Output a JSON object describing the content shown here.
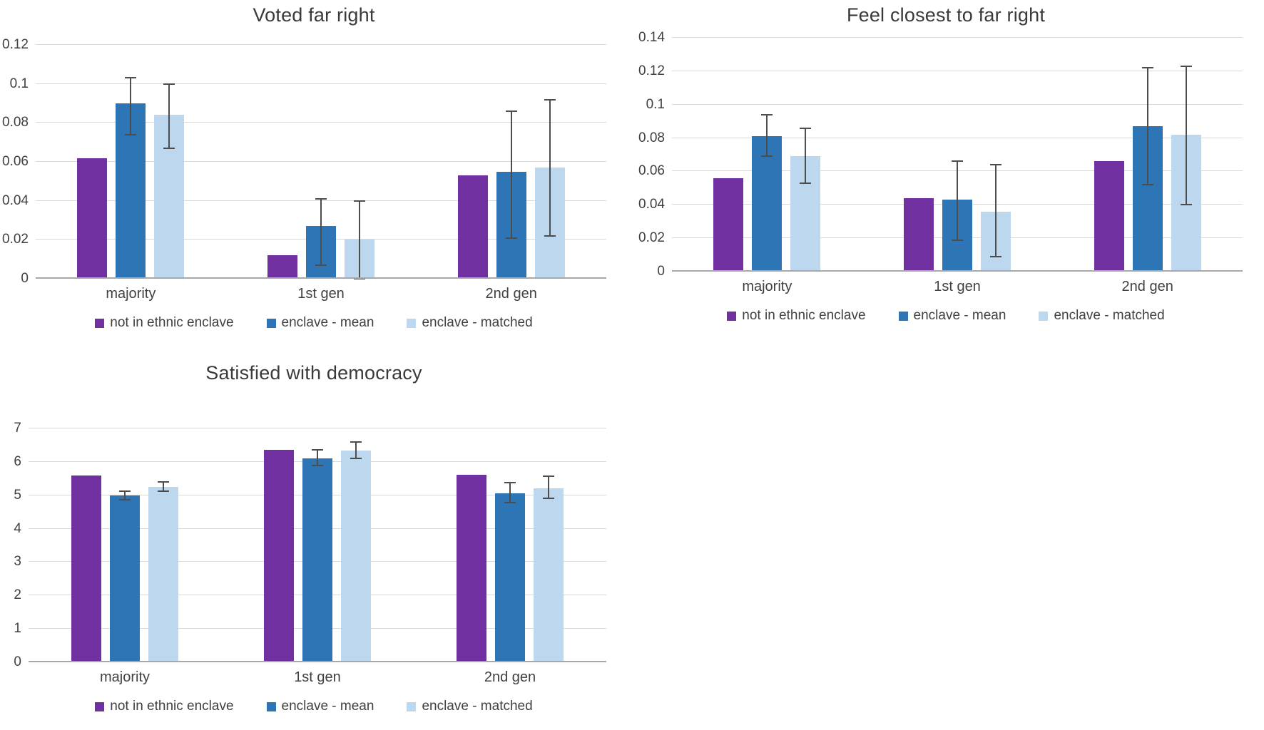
{
  "colors": {
    "purple": "#7030A0",
    "blue": "#2E75B6",
    "light_blue": "#BDD7EE",
    "gridline": "#D9D9D9",
    "axis_line": "#A8A8A8",
    "error_bar": "#4D4D4D",
    "text": "#404040"
  },
  "chart_data": [
    {
      "type": "bar",
      "title": "Voted far right",
      "categories": [
        "majority",
        "1st gen",
        "2nd gen"
      ],
      "y_ticks": [
        "0",
        "0.02",
        "0.04",
        "0.06",
        "0.08",
        "0.1",
        "0.12"
      ],
      "ylim": [
        0,
        0.12
      ],
      "grid": true,
      "legend_position": "bottom",
      "series": [
        {
          "name": "not in ethnic enclave",
          "color": "#7030A0",
          "values": [
            0.062,
            0.012,
            0.053
          ]
        },
        {
          "name": "enclave - mean",
          "color": "#2E75B6",
          "values": [
            0.09,
            0.027,
            0.055
          ],
          "error_low": [
            0.074,
            0.007,
            0.021
          ],
          "error_high": [
            0.103,
            0.041,
            0.086
          ]
        },
        {
          "name": "enclave - matched",
          "color": "#BDD7EE",
          "values": [
            0.084,
            0.02,
            0.057
          ],
          "error_low": [
            0.067,
            0.0,
            0.022
          ],
          "error_high": [
            0.1,
            0.04,
            0.092
          ]
        }
      ]
    },
    {
      "type": "bar",
      "title": "Feel closest to far right",
      "categories": [
        "majority",
        "1st gen",
        "2nd gen"
      ],
      "y_ticks": [
        "0",
        "0.02",
        "0.04",
        "0.06",
        "0.08",
        "0.1",
        "0.12",
        "0.14"
      ],
      "ylim": [
        0,
        0.14
      ],
      "grid": true,
      "legend_position": "bottom",
      "series": [
        {
          "name": "not in ethnic enclave",
          "color": "#7030A0",
          "values": [
            0.056,
            0.044,
            0.066
          ]
        },
        {
          "name": "enclave - mean",
          "color": "#2E75B6",
          "values": [
            0.081,
            0.043,
            0.087
          ],
          "error_low": [
            0.069,
            0.019,
            0.052
          ],
          "error_high": [
            0.094,
            0.066,
            0.122
          ]
        },
        {
          "name": "enclave - matched",
          "color": "#BDD7EE",
          "values": [
            0.069,
            0.036,
            0.082
          ],
          "error_low": [
            0.053,
            0.009,
            0.04
          ],
          "error_high": [
            0.086,
            0.064,
            0.123
          ]
        }
      ]
    },
    {
      "type": "bar",
      "title": "Satisfied with democracy",
      "categories": [
        "majority",
        "1st gen",
        "2nd gen"
      ],
      "y_ticks": [
        "0",
        "1",
        "2",
        "3",
        "4",
        "5",
        "6",
        "7"
      ],
      "ylim": [
        0,
        7
      ],
      "grid": true,
      "legend_position": "bottom",
      "series": [
        {
          "name": "not in ethnic enclave",
          "color": "#7030A0",
          "values": [
            5.6,
            6.36,
            5.62
          ]
        },
        {
          "name": "enclave - mean",
          "color": "#2E75B6",
          "values": [
            5.0,
            6.1,
            5.05
          ],
          "error_low": [
            4.87,
            5.9,
            4.78
          ],
          "error_high": [
            5.13,
            6.35,
            5.37
          ]
        },
        {
          "name": "enclave - matched",
          "color": "#BDD7EE",
          "values": [
            5.25,
            6.33,
            5.2
          ],
          "error_low": [
            5.12,
            6.1,
            4.9
          ],
          "error_high": [
            5.4,
            6.6,
            5.58
          ]
        }
      ]
    }
  ]
}
